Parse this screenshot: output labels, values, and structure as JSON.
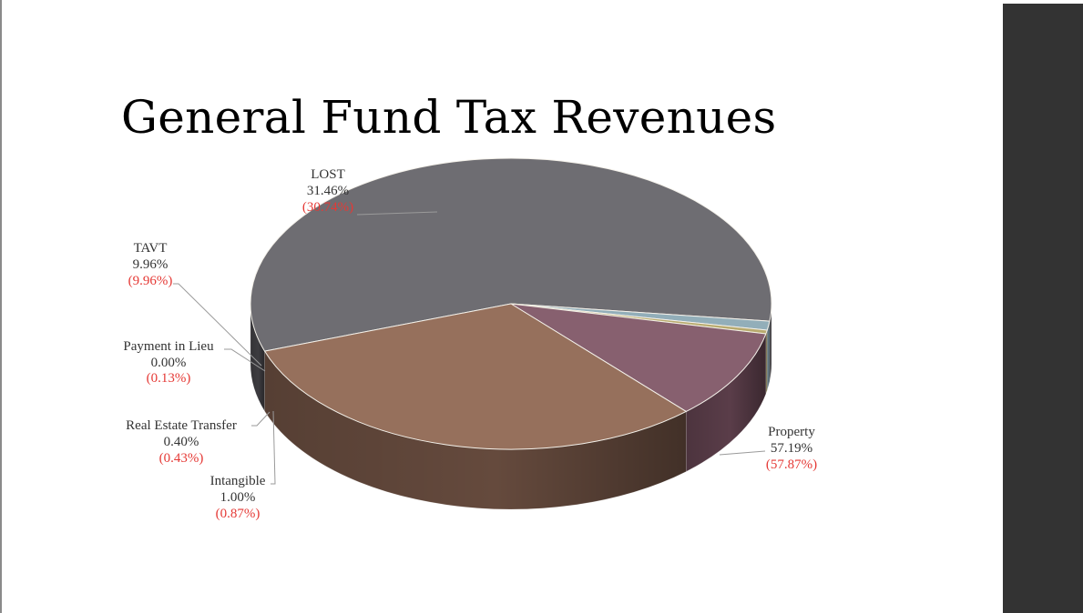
{
  "slide": {
    "title": "General Fund Tax Revenues"
  },
  "chart_data": {
    "type": "pie",
    "title": "General Fund Tax Revenues",
    "three_d": true,
    "slices": [
      {
        "name": "Property",
        "value": 57.19,
        "label": "57.19%",
        "prior_label": "(57.87%)",
        "color": "#6e6d72",
        "side_color": "#3d3c40"
      },
      {
        "name": "Intangible",
        "value": 1.0,
        "label": "1.00%",
        "prior_label": "(0.87%)",
        "color": "#92aeb9",
        "side_color": "#5f7680"
      },
      {
        "name": "Real Estate Transfer",
        "value": 0.4,
        "label": "0.40%",
        "prior_label": "(0.43%)",
        "color": "#b8aa6e",
        "side_color": "#7e744a"
      },
      {
        "name": "Payment in Lieu",
        "value": 0.0,
        "label": "0.00%",
        "prior_label": "(0.13%)",
        "color": "#a6a49a",
        "side_color": "#6f6d66"
      },
      {
        "name": "TAVT",
        "value": 9.96,
        "label": "9.96%",
        "prior_label": "(9.96%)",
        "color": "#87606f",
        "side_color": "#5a3d49"
      },
      {
        "name": "LOST",
        "value": 31.46,
        "label": "31.46%",
        "prior_label": "(30.74%)",
        "color": "#96705c",
        "side_color": "#654a3d"
      }
    ],
    "colors": {
      "title": "#000000",
      "label_text": "#333333",
      "prior_year_text": "#e53935",
      "right_bar": "#333333"
    }
  }
}
